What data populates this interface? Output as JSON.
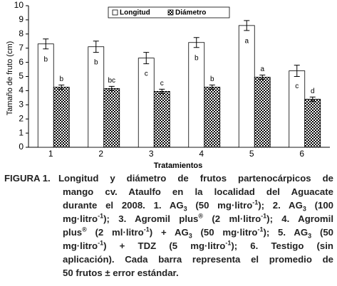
{
  "chart_data": {
    "type": "bar",
    "ylabel": "Tamaño de fruto (cm)",
    "xlabel": "Tratamientos",
    "categories": [
      "1",
      "2",
      "3",
      "4",
      "5",
      "6"
    ],
    "series": [
      {
        "name": "Longitud",
        "color": "#ffffff",
        "values": [
          7.3,
          7.1,
          6.3,
          7.4,
          8.6,
          5.4
        ],
        "errors": [
          0.35,
          0.4,
          0.4,
          0.35,
          0.35,
          0.4
        ],
        "letters": [
          "b",
          "b",
          "c",
          "b",
          "a",
          "c"
        ]
      },
      {
        "name": "Diámetro",
        "color": "#000000",
        "values": [
          4.25,
          4.15,
          3.95,
          4.25,
          4.95,
          3.4
        ],
        "errors": [
          0.15,
          0.15,
          0.15,
          0.15,
          0.15,
          0.15
        ],
        "letters": [
          "b",
          "bc",
          "c",
          "b",
          "a",
          "d"
        ]
      }
    ],
    "ylim": [
      0,
      10
    ],
    "yticks": [
      0,
      1,
      2,
      3,
      4,
      5,
      6,
      7,
      8,
      9,
      10
    ],
    "grid": false,
    "legend": "top"
  },
  "caption": {
    "label": "FIGURA 1.",
    "lines": [
      [
        "Longitud y diámetro de frutos partenocárpicos de"
      ],
      [
        "mango cv. Ataulfo en la localidad del Aguacate"
      ],
      [
        "durante el 2008. 1. AG",
        {
          "sub": "3"
        },
        " (50 mg·litro",
        {
          "sup": "-1"
        },
        "); 2. AG",
        {
          "sub": "3"
        },
        " (100"
      ],
      [
        "mg·litro",
        {
          "sup": "-1"
        },
        "); 3. Agromil plus",
        {
          "sup": "®"
        },
        " (2 ml·litro",
        {
          "sup": "-1"
        },
        "); 4. Agromil"
      ],
      [
        "plus",
        {
          "sup": "®"
        },
        " (2 ml·litro",
        {
          "sup": "-1"
        },
        ") + AG",
        {
          "sub": "3"
        },
        " (50 mg·litro",
        {
          "sup": "-1"
        },
        "); 5. AG",
        {
          "sub": "3"
        },
        " (50"
      ],
      [
        "mg·litro",
        {
          "sup": "-1"
        },
        ") + TDZ (5 mg·litro",
        {
          "sup": "-1"
        },
        "); 6. Testigo (sin"
      ],
      [
        "aplicación). Cada barra representa el promedio de"
      ],
      [
        "50 frutos ± error estándar."
      ]
    ]
  }
}
